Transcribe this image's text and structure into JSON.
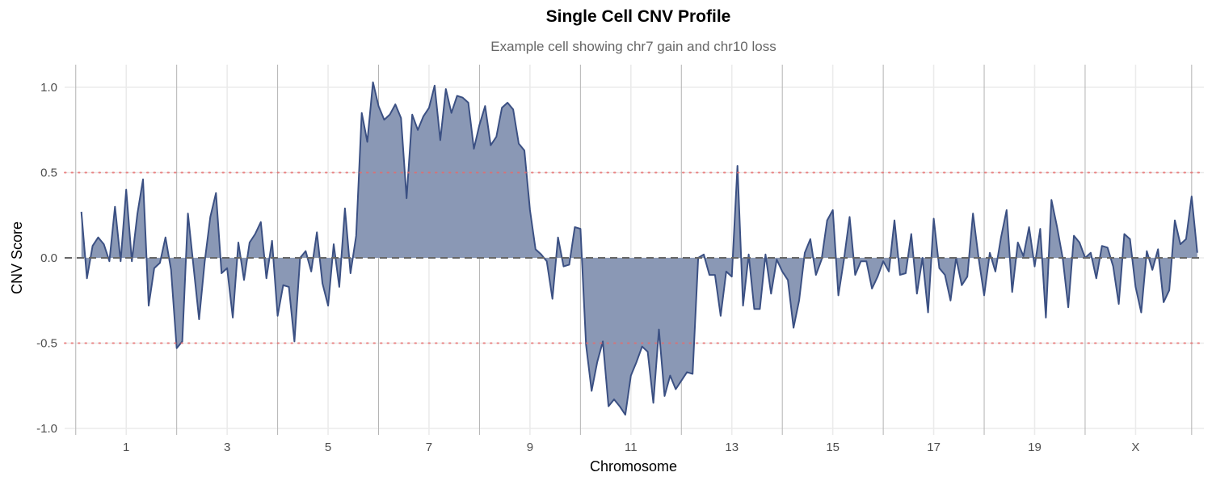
{
  "chart_data": {
    "type": "area",
    "title": "Single Cell CNV Profile",
    "subtitle": "Example cell showing chr7 gain and chr10 loss",
    "xlabel": "Chromosome",
    "ylabel": "CNV Score",
    "ylim": [
      -1.0,
      1.0
    ],
    "y_ticks": [
      "1.0",
      "0.5",
      "0.0",
      "-0.5",
      "-1.0"
    ],
    "y_tick_values": [
      1.0,
      0.5,
      0.0,
      -0.5,
      -1.0
    ],
    "x_ticks": [
      {
        "label": "1",
        "bin": 8
      },
      {
        "label": "3",
        "bin": 26
      },
      {
        "label": "5",
        "bin": 44
      },
      {
        "label": "7",
        "bin": 62
      },
      {
        "label": "9",
        "bin": 80
      },
      {
        "label": "11",
        "bin": 98
      },
      {
        "label": "13",
        "bin": 116
      },
      {
        "label": "15",
        "bin": 134
      },
      {
        "label": "17",
        "bin": 152
      },
      {
        "label": "19",
        "bin": 170
      },
      {
        "label": "X",
        "bin": 188
      }
    ],
    "chromosome_boundaries": [
      -1,
      17,
      35,
      53,
      71,
      89,
      107,
      125,
      143,
      161,
      179,
      198
    ],
    "reference_lines": [
      {
        "value": 0.0,
        "style": "dashed",
        "color": "#666666"
      },
      {
        "value": 0.5,
        "style": "dotted",
        "color": "#e86a6a"
      },
      {
        "value": -0.5,
        "style": "dotted",
        "color": "#e86a6a"
      }
    ],
    "grid": true,
    "colors": {
      "line": "#3b5083",
      "fill": "#8a98b5"
    },
    "values": [
      0.27,
      -0.12,
      0.07,
      0.12,
      0.08,
      -0.02,
      0.3,
      -0.02,
      0.4,
      -0.02,
      0.26,
      0.46,
      -0.28,
      -0.06,
      -0.03,
      0.12,
      -0.07,
      -0.53,
      -0.49,
      0.26,
      -0.05,
      -0.36,
      -0.02,
      0.24,
      0.38,
      -0.09,
      -0.06,
      -0.35,
      0.09,
      -0.13,
      0.09,
      0.14,
      0.21,
      -0.12,
      0.1,
      -0.34,
      -0.16,
      -0.17,
      -0.49,
      0.0,
      0.04,
      -0.08,
      0.15,
      -0.15,
      -0.28,
      0.08,
      -0.17,
      0.29,
      -0.09,
      0.13,
      0.85,
      0.68,
      1.03,
      0.89,
      0.81,
      0.84,
      0.9,
      0.82,
      0.35,
      0.84,
      0.75,
      0.83,
      0.88,
      1.01,
      0.69,
      0.99,
      0.85,
      0.95,
      0.94,
      0.91,
      0.64,
      0.78,
      0.89,
      0.66,
      0.71,
      0.88,
      0.91,
      0.87,
      0.67,
      0.63,
      0.28,
      0.05,
      0.02,
      -0.02,
      -0.24,
      0.12,
      -0.05,
      -0.04,
      0.18,
      0.17,
      -0.51,
      -0.78,
      -0.61,
      -0.49,
      -0.87,
      -0.83,
      -0.87,
      -0.92,
      -0.69,
      -0.61,
      -0.52,
      -0.55,
      -0.85,
      -0.42,
      -0.81,
      -0.69,
      -0.77,
      -0.72,
      -0.67,
      -0.68,
      0.0,
      0.02,
      -0.1,
      -0.1,
      -0.34,
      -0.08,
      -0.11,
      0.54,
      -0.28,
      0.02,
      -0.3,
      -0.3,
      0.02,
      -0.21,
      -0.01,
      -0.08,
      -0.13,
      -0.41,
      -0.25,
      0.03,
      0.11,
      -0.1,
      -0.01,
      0.22,
      0.28,
      -0.22,
      -0.01,
      0.24,
      -0.1,
      -0.02,
      -0.02,
      -0.18,
      -0.11,
      -0.02,
      -0.08,
      0.22,
      -0.1,
      -0.09,
      0.14,
      -0.21,
      0.0,
      -0.32,
      0.23,
      -0.06,
      -0.1,
      -0.25,
      0.0,
      -0.16,
      -0.11,
      0.26,
      0.0,
      -0.22,
      0.03,
      -0.08,
      0.12,
      0.28,
      -0.2,
      0.09,
      0.01,
      0.18,
      -0.05,
      0.17,
      -0.35,
      0.34,
      0.18,
      0.0,
      -0.29,
      0.13,
      0.09,
      0.0,
      0.03,
      -0.12,
      0.07,
      0.06,
      -0.05,
      -0.27,
      0.14,
      0.11,
      -0.17,
      -0.32,
      0.04,
      -0.07,
      0.05,
      -0.26,
      -0.19,
      0.22,
      0.08,
      0.11,
      0.36,
      0.03
    ]
  }
}
